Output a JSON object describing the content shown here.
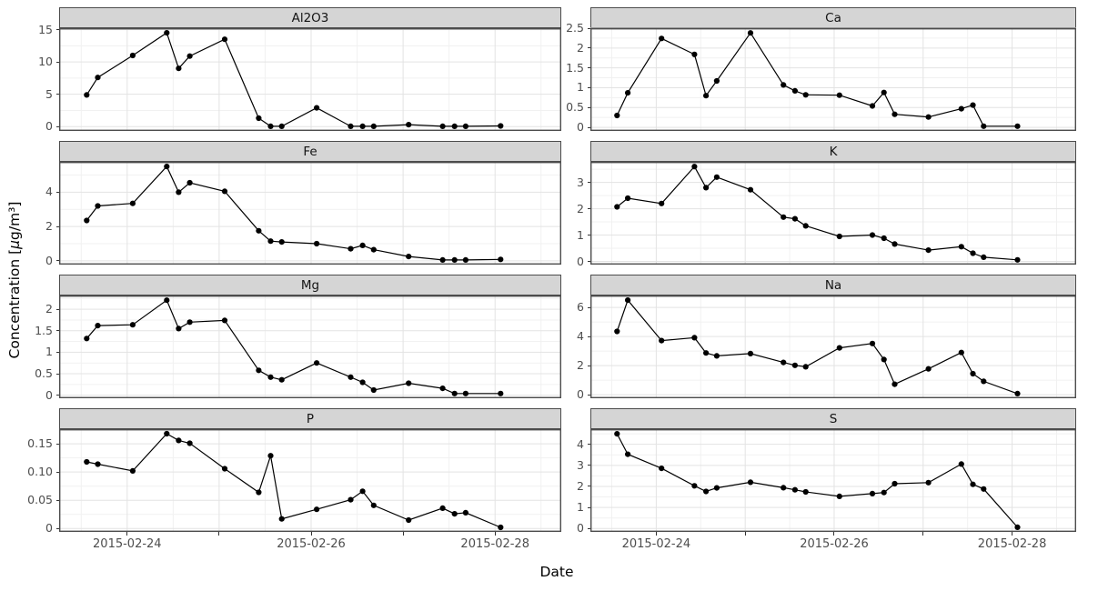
{
  "style": {
    "colors": {
      "background": "#ffffff",
      "strip_bg": "#d5d5d5",
      "border": "#4c4c4c",
      "grid_major": "#e3e3e3",
      "grid_minor": "#f1f1f1",
      "tick_text": "#4d4d4d",
      "tick_mark": "#333333",
      "axis_title": "#000000",
      "data": "#000000"
    }
  },
  "chart_data": {
    "type": "line",
    "facet_layout": {
      "rows": 4,
      "cols": 2
    },
    "xlabel": "Date",
    "ylabel": "Concentration [μg/m³]",
    "ylabel_parts": {
      "prefix": "Concentration [",
      "mu": "μ",
      "suffix": "g/m³]"
    },
    "marker": "filled-circle",
    "grid": "major+minor",
    "legend": "none",
    "x_unit": "days since 2015-02-23 00:00 (sample datetimes estimated from plot)",
    "x": [
      0.56,
      0.68,
      1.06,
      1.43,
      1.56,
      1.68,
      2.06,
      2.43,
      2.56,
      2.68,
      3.06,
      3.43,
      3.56,
      3.68,
      4.06,
      4.43,
      4.56,
      4.68,
      5.06
    ],
    "xlim": [
      0.26,
      5.72
    ],
    "x_ticks": {
      "day_values": [
        1,
        2,
        3,
        4,
        5
      ],
      "labels": [
        "2015-02-24",
        "",
        "2015-02-26",
        "",
        "2015-02-28"
      ]
    },
    "panels": [
      {
        "title": "Al2O3",
        "values": [
          4.9,
          7.6,
          11,
          14.5,
          9,
          10.9,
          13.5,
          1.3,
          0.05,
          0.05,
          2.9,
          0.05,
          0.05,
          0.05,
          0.3,
          0.05,
          0.05,
          0.05,
          0.1
        ],
        "ylim": [
          -0.67,
          15.22
        ],
        "y_ticks": {
          "values": [
            0,
            5,
            10,
            15
          ],
          "labels": [
            "0",
            "5",
            "10",
            "15"
          ]
        }
      },
      {
        "title": "Ca",
        "values": [
          0.3,
          0.87,
          2.24,
          1.84,
          0.8,
          1.17,
          2.38,
          1.07,
          0.92,
          0.82,
          0.81,
          0.54,
          0.88,
          0.33,
          0.26,
          0.47,
          0.56,
          0.03,
          0.03
        ],
        "ylim": [
          -0.09,
          2.5
        ],
        "y_ticks": {
          "values": [
            0,
            0.5,
            1,
            1.5,
            2,
            2.5
          ],
          "labels": [
            "0",
            "0.5",
            "1",
            "1.5",
            "2",
            "2.5"
          ]
        }
      },
      {
        "title": "Fe",
        "values": [
          2.35,
          3.2,
          3.35,
          5.5,
          4,
          4.55,
          4.05,
          1.75,
          1.15,
          1.1,
          1,
          0.7,
          0.9,
          0.65,
          0.25,
          0.05,
          0.05,
          0.05,
          0.08
        ],
        "ylim": [
          -0.22,
          5.77
        ],
        "y_ticks": {
          "values": [
            0,
            2,
            4
          ],
          "labels": [
            "0",
            "2",
            "4"
          ]
        }
      },
      {
        "title": "K",
        "values": [
          2.07,
          2.4,
          2.2,
          3.6,
          2.8,
          3.2,
          2.72,
          1.68,
          1.62,
          1.35,
          0.95,
          1,
          0.88,
          0.66,
          0.43,
          0.56,
          0.31,
          0.16,
          0.06
        ],
        "ylim": [
          -0.12,
          3.78
        ],
        "y_ticks": {
          "values": [
            0,
            1,
            2,
            3
          ],
          "labels": [
            "0",
            "1",
            "2",
            "3"
          ]
        }
      },
      {
        "title": "Mg",
        "values": [
          1.32,
          1.62,
          1.64,
          2.21,
          1.55,
          1.7,
          1.74,
          0.58,
          0.42,
          0.36,
          0.75,
          0.42,
          0.3,
          0.12,
          0.28,
          0.16,
          0.04,
          0.04,
          0.04
        ],
        "ylim": [
          -0.07,
          2.32
        ],
        "y_ticks": {
          "values": [
            0,
            0.5,
            1,
            1.5,
            2
          ],
          "labels": [
            "0",
            "0.5",
            "1",
            "1.5",
            "2"
          ]
        }
      },
      {
        "title": "Na",
        "values": [
          4.35,
          6.5,
          3.72,
          3.92,
          2.87,
          2.67,
          2.83,
          2.22,
          2.02,
          1.92,
          3.22,
          3.52,
          2.42,
          0.72,
          1.78,
          2.9,
          1.45,
          0.92,
          0.08
        ],
        "ylim": [
          -0.24,
          6.82
        ],
        "y_ticks": {
          "values": [
            0,
            2,
            4,
            6
          ],
          "labels": [
            "0",
            "2",
            "4",
            "6"
          ]
        }
      },
      {
        "title": "P",
        "values": [
          0.118,
          0.114,
          0.102,
          0.168,
          0.156,
          0.151,
          0.106,
          0.064,
          0.129,
          0.017,
          0.034,
          0.051,
          0.066,
          0.041,
          0.015,
          0.036,
          0.026,
          0.028,
          0.002
        ],
        "ylim": [
          -0.006,
          0.176
        ],
        "y_ticks": {
          "values": [
            0,
            0.05,
            0.1,
            0.15
          ],
          "labels": [
            "0",
            "0.05",
            "0.10",
            "0.15"
          ]
        }
      },
      {
        "title": "S",
        "values": [
          4.5,
          3.53,
          2.86,
          2.03,
          1.76,
          1.93,
          2.2,
          1.94,
          1.84,
          1.74,
          1.53,
          1.66,
          1.71,
          2.13,
          2.18,
          3.06,
          2.1,
          1.88,
          0.06
        ],
        "ylim": [
          -0.16,
          4.72
        ],
        "y_ticks": {
          "values": [
            0,
            1,
            2,
            3,
            4
          ],
          "labels": [
            "0",
            "1",
            "2",
            "3",
            "4"
          ]
        }
      }
    ]
  }
}
